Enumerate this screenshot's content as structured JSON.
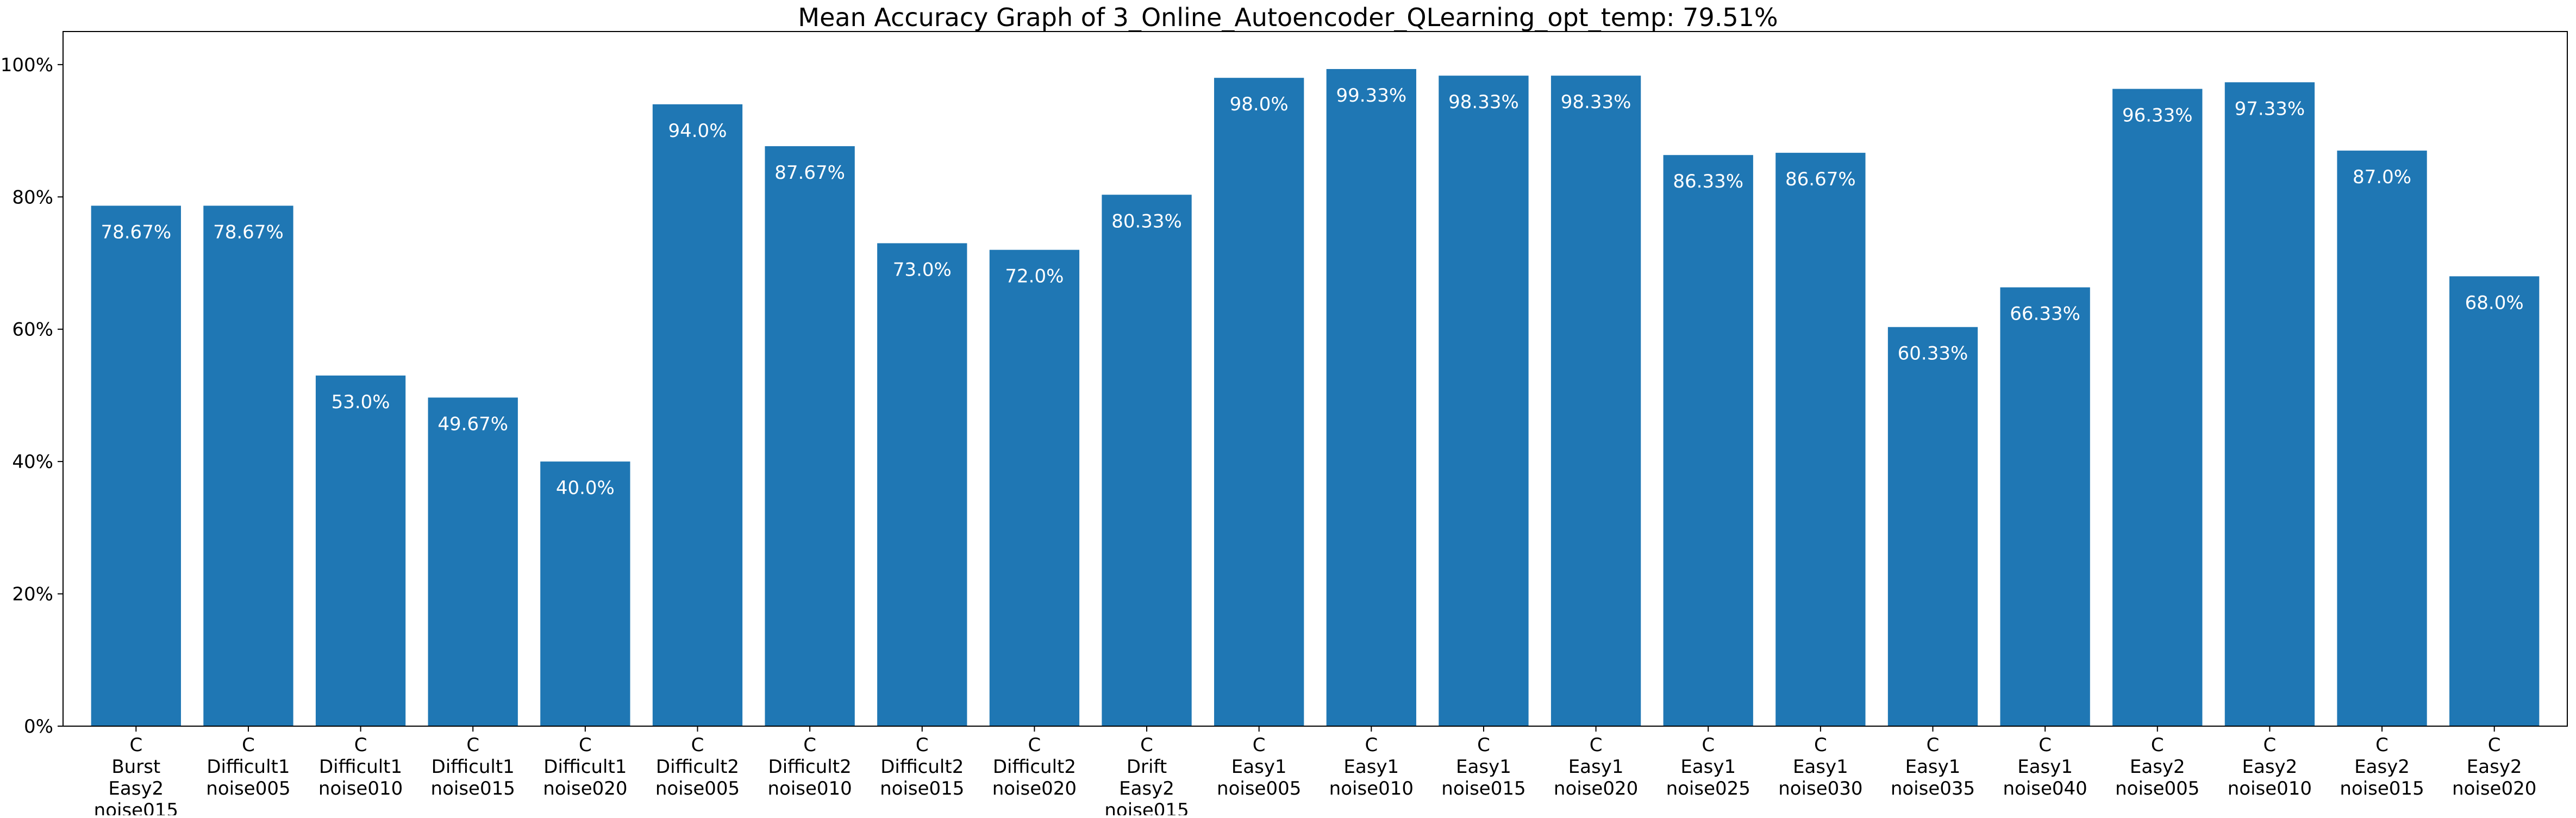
{
  "chart_data": {
    "type": "bar",
    "title": "Mean Accuracy Graph of 3_Online_Autoencoder_QLearning_opt_temp: 79.51%",
    "xlabel": "",
    "ylabel": "",
    "ylim": [
      0,
      105
    ],
    "grid": false,
    "bar_color": "#1f77b4",
    "label_color": "#ffffff",
    "y_ticks": [
      0,
      20,
      40,
      60,
      80,
      100
    ],
    "y_tick_labels": [
      "0%",
      "20%",
      "40%",
      "60%",
      "80%",
      "100%"
    ],
    "categories": [
      [
        "C",
        "Burst",
        "Easy2",
        "noise015"
      ],
      [
        "C",
        "Difficult1",
        "noise005"
      ],
      [
        "C",
        "Difficult1",
        "noise010"
      ],
      [
        "C",
        "Difficult1",
        "noise015"
      ],
      [
        "C",
        "Difficult1",
        "noise020"
      ],
      [
        "C",
        "Difficult2",
        "noise005"
      ],
      [
        "C",
        "Difficult2",
        "noise010"
      ],
      [
        "C",
        "Difficult2",
        "noise015"
      ],
      [
        "C",
        "Difficult2",
        "noise020"
      ],
      [
        "C",
        "Drift",
        "Easy2",
        "noise015"
      ],
      [
        "C",
        "Easy1",
        "noise005"
      ],
      [
        "C",
        "Easy1",
        "noise010"
      ],
      [
        "C",
        "Easy1",
        "noise015"
      ],
      [
        "C",
        "Easy1",
        "noise020"
      ],
      [
        "C",
        "Easy1",
        "noise025"
      ],
      [
        "C",
        "Easy1",
        "noise030"
      ],
      [
        "C",
        "Easy1",
        "noise035"
      ],
      [
        "C",
        "Easy1",
        "noise040"
      ],
      [
        "C",
        "Easy2",
        "noise005"
      ],
      [
        "C",
        "Easy2",
        "noise010"
      ],
      [
        "C",
        "Easy2",
        "noise015"
      ],
      [
        "C",
        "Easy2",
        "noise020"
      ]
    ],
    "values": [
      78.67,
      78.67,
      53.0,
      49.67,
      40.0,
      94.0,
      87.67,
      73.0,
      72.0,
      80.33,
      98.0,
      99.33,
      98.33,
      98.33,
      86.33,
      86.67,
      60.33,
      66.33,
      96.33,
      97.33,
      87.0,
      68.0
    ],
    "data_labels": [
      "78.67%",
      "78.67%",
      "53.0%",
      "49.67%",
      "40.0%",
      "94.0%",
      "87.67%",
      "73.0%",
      "72.0%",
      "80.33%",
      "98.0%",
      "99.33%",
      "98.33%",
      "98.33%",
      "86.33%",
      "86.67%",
      "60.33%",
      "66.33%",
      "96.33%",
      "97.33%",
      "87.0%",
      "68.0%"
    ]
  }
}
